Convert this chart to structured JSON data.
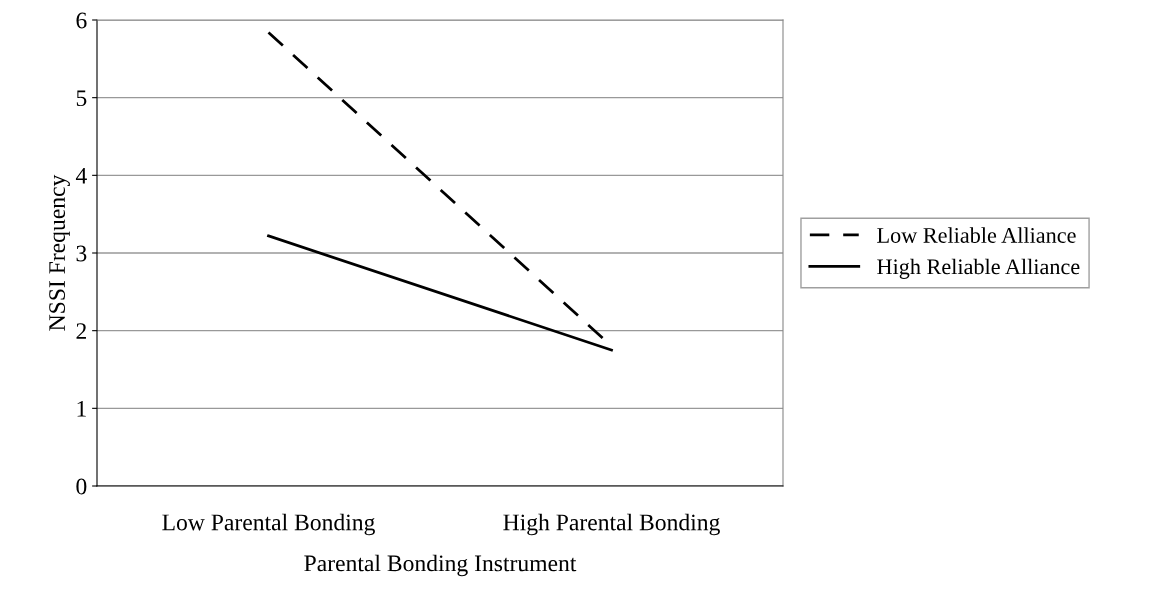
{
  "chart_data": {
    "type": "line",
    "xlabel": "Parental Bonding Instrument",
    "ylabel": "NSSI Frequency",
    "categories": [
      "Low Parental Bonding",
      "High Parental Bonding"
    ],
    "series": [
      {
        "name": "Low Reliable Alliance",
        "color": "#000000",
        "values": [
          5.84,
          1.8
        ],
        "line_style": "dashed"
      },
      {
        "name": "High Reliable Alliance",
        "color": "#000000",
        "values": [
          3.22,
          1.75
        ],
        "line_style": "solid"
      }
    ],
    "ylim": [
      0,
      6
    ],
    "yticks": [
      0,
      1,
      2,
      3,
      4,
      5,
      6
    ],
    "grid": "y",
    "legend": "right",
    "marker": "none"
  }
}
